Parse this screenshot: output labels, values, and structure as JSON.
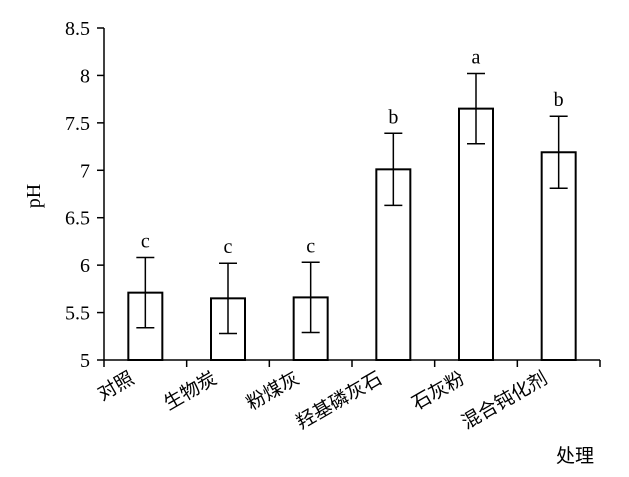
{
  "chart_data": {
    "type": "bar",
    "title": "",
    "xlabel": "处理",
    "ylabel": "pH",
    "ylim": [
      5,
      8.5
    ],
    "yticks": [
      "5",
      "5.5",
      "6",
      "6.5",
      "7",
      "7.5",
      "8",
      "8.5"
    ],
    "categories": [
      "对照",
      "生物炭",
      "粉煤灰",
      "羟基磷灰石",
      "石灰粉",
      "混合钝化剂"
    ],
    "values": [
      5.71,
      5.65,
      5.66,
      7.01,
      7.65,
      7.19
    ],
    "errors": [
      0.37,
      0.37,
      0.37,
      0.38,
      0.37,
      0.38
    ],
    "significance": [
      "c",
      "c",
      "c",
      "b",
      "a",
      "b"
    ],
    "grid": false,
    "legend": "none",
    "bar_fill": "#ffffff",
    "bar_stroke": "#000000"
  }
}
